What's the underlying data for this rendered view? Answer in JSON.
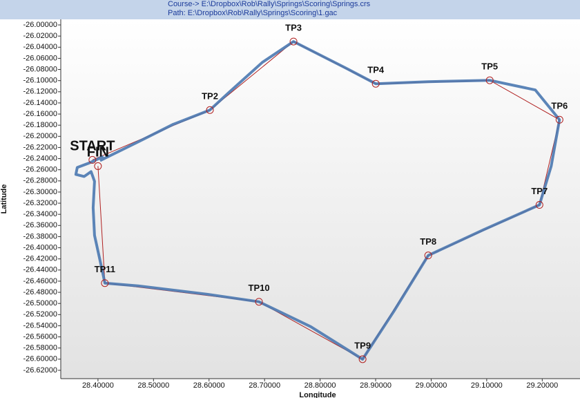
{
  "header": {
    "course": "Course-> E:\\Dropbox\\Rob\\Rally\\Springs\\Scoring\\Springs.crs",
    "path": "Path: E:\\Dropbox\\Rob\\Rally\\Springs\\Scoring\\1.gac"
  },
  "chart_data": {
    "type": "line",
    "x_label": "Longitude",
    "y_label": "Latitude",
    "xlim": [
      28.333,
      29.268
    ],
    "ylim": [
      -26.635,
      -25.99
    ],
    "xticks": [
      {
        "value": 28.4,
        "label": "28.40000"
      },
      {
        "value": 28.5,
        "label": "28.50000"
      },
      {
        "value": 28.6,
        "label": "28.60000"
      },
      {
        "value": 28.7,
        "label": "28.70000"
      },
      {
        "value": 28.8,
        "label": "28.80000"
      },
      {
        "value": 28.9,
        "label": "28.90000"
      },
      {
        "value": 29.0,
        "label": "29.00000"
      },
      {
        "value": 29.1,
        "label": "29.10000"
      },
      {
        "value": 29.2,
        "label": "29.20000"
      }
    ],
    "yticks": [
      {
        "value": -26.0,
        "label": "-26.00000"
      },
      {
        "value": -26.02,
        "label": "-26.02000"
      },
      {
        "value": -26.04,
        "label": "-26.04000"
      },
      {
        "value": -26.06,
        "label": "-26.06000"
      },
      {
        "value": -26.08,
        "label": "-26.08000"
      },
      {
        "value": -26.1,
        "label": "-26.10000"
      },
      {
        "value": -26.12,
        "label": "-26.12000"
      },
      {
        "value": -26.14,
        "label": "-26.14000"
      },
      {
        "value": -26.16,
        "label": "-26.16000"
      },
      {
        "value": -26.18,
        "label": "-26.18000"
      },
      {
        "value": -26.2,
        "label": "-26.20000"
      },
      {
        "value": -26.22,
        "label": "-26.22000"
      },
      {
        "value": -26.24,
        "label": "-26.24000"
      },
      {
        "value": -26.26,
        "label": "-26.26000"
      },
      {
        "value": -26.28,
        "label": "-26.28000"
      },
      {
        "value": -26.3,
        "label": "-26.30000"
      },
      {
        "value": -26.32,
        "label": "-26.32000"
      },
      {
        "value": -26.34,
        "label": "-26.34000"
      },
      {
        "value": -26.36,
        "label": "-26.36000"
      },
      {
        "value": -26.38,
        "label": "-26.38000"
      },
      {
        "value": -26.4,
        "label": "-26.40000"
      },
      {
        "value": -26.42,
        "label": "-26.42000"
      },
      {
        "value": -26.44,
        "label": "-26.44000"
      },
      {
        "value": -26.46,
        "label": "-26.46000"
      },
      {
        "value": -26.48,
        "label": "-26.48000"
      },
      {
        "value": -26.5,
        "label": "-26.50000"
      },
      {
        "value": -26.52,
        "label": "-26.52000"
      },
      {
        "value": -26.54,
        "label": "-26.54000"
      },
      {
        "value": -26.56,
        "label": "-26.56000"
      },
      {
        "value": -26.58,
        "label": "-26.58000"
      },
      {
        "value": -26.6,
        "label": "-26.60000"
      },
      {
        "value": -26.62,
        "label": "-26.62000"
      }
    ],
    "track": {
      "color": "#4a78b0",
      "x": [
        28.41,
        28.3826,
        28.3627,
        28.3602,
        28.3751,
        28.3876,
        28.3938,
        28.3913,
        28.3938,
        28.4075,
        28.4124,
        28.4722,
        28.5966,
        28.6899,
        28.7832,
        28.8765,
        28.9325,
        28.9947,
        29.0942,
        29.195,
        29.2162,
        29.2311,
        29.1875,
        29.1054,
        28.9947,
        28.9002,
        28.8454,
        28.7521,
        28.6961,
        28.6339,
        28.6016,
        28.5344,
        28.4722,
        28.4037
      ],
      "values": [
        -26.2361,
        -26.2485,
        -26.256,
        -26.2684,
        -26.2721,
        -26.2634,
        -26.2808,
        -26.328,
        -26.3777,
        -26.4399,
        -26.4635,
        -26.4684,
        -26.4834,
        -26.497,
        -26.5417,
        -26.6001,
        -26.5144,
        -26.4138,
        -26.3678,
        -26.3231,
        -26.2535,
        -26.1702,
        -26.1168,
        -26.0994,
        -26.1019,
        -26.1056,
        -26.077,
        -26.0298,
        -26.0671,
        -26.123,
        -26.1528,
        -26.1789,
        -26.21,
        -26.2435
      ]
    },
    "course": {
      "color": "#b02020",
      "labels": [
        "START",
        "TP2",
        "TP3",
        "TP4",
        "TP5",
        "TP6",
        "TP7",
        "TP8",
        "TP9",
        "TP10",
        "TP11",
        "FIN"
      ],
      "label_colors": [
        "#1f8f1f",
        "#111111",
        "#111111",
        "#111111",
        "#111111",
        "#111111",
        "#111111",
        "#111111",
        "#111111",
        "#111111",
        "#111111",
        "#e02020"
      ],
      "x": [
        28.39,
        28.6016,
        28.7521,
        28.9002,
        29.1054,
        29.2311,
        29.195,
        28.9947,
        28.8765,
        28.6899,
        28.4124,
        28.4
      ],
      "values": [
        -26.2423,
        -26.1528,
        -26.0298,
        -26.1056,
        -26.0994,
        -26.1702,
        -26.3231,
        -26.4138,
        -26.6001,
        -26.497,
        -26.4635,
        -26.2535
      ]
    }
  }
}
